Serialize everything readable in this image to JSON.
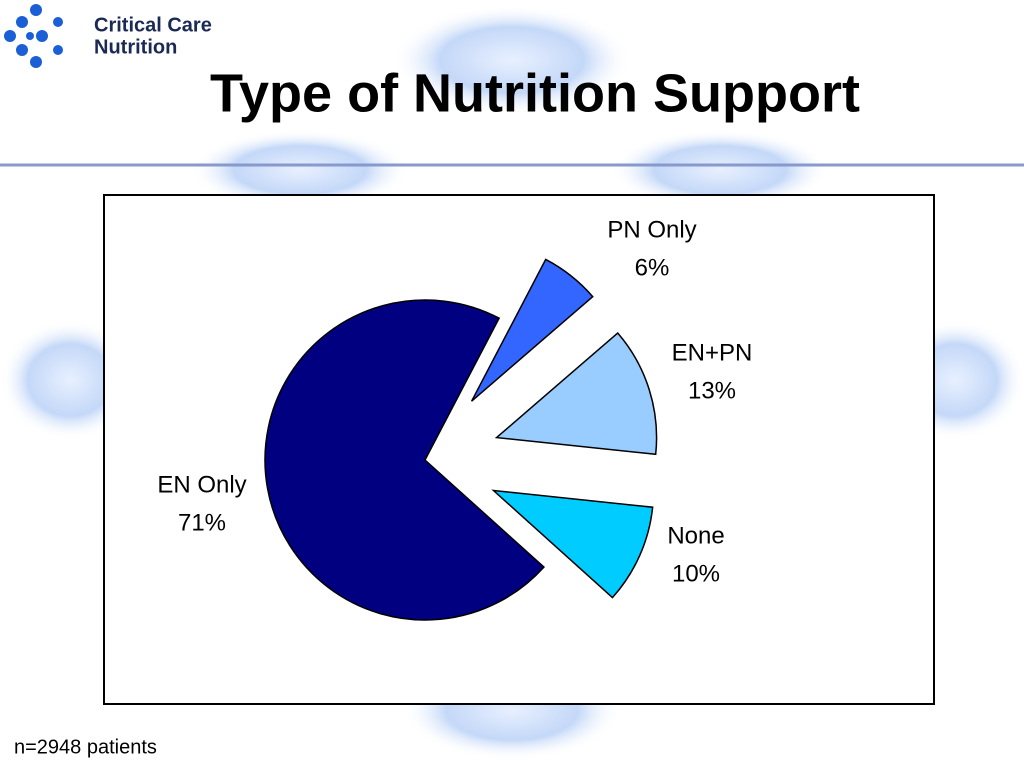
{
  "logo": {
    "line1": "Critical Care",
    "line2": "Nutrition"
  },
  "chart_data": {
    "type": "pie",
    "title": "Type of Nutrition Support",
    "categories": [
      "EN Only",
      "PN Only",
      "EN+PN",
      "None"
    ],
    "values": [
      71,
      6,
      13,
      10
    ],
    "value_labels": [
      "71%",
      "6%",
      "13%",
      "10%"
    ],
    "colors": [
      "#000080",
      "#3366ff",
      "#99ccff",
      "#00ccff"
    ]
  },
  "footnote": "n=2948 patients"
}
